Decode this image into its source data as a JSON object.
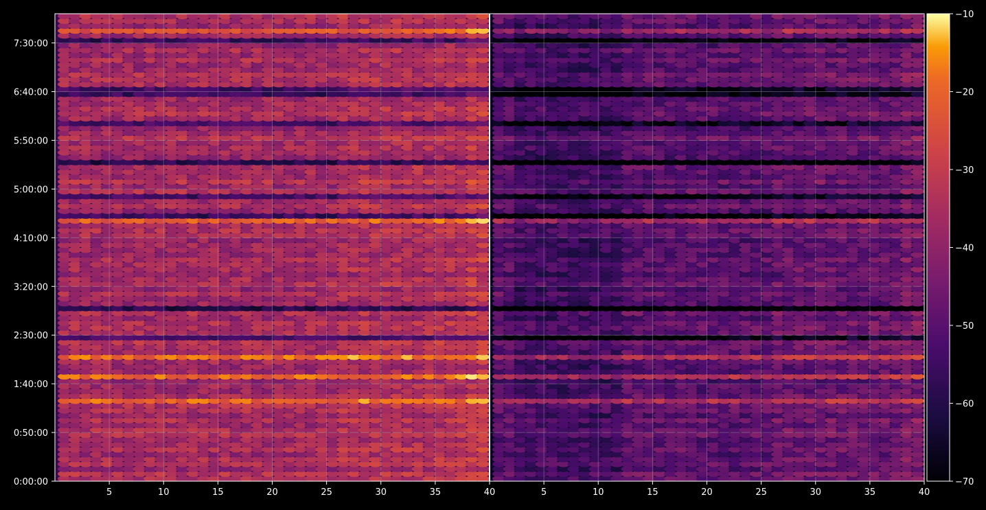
{
  "chart_data": {
    "type": "heatmap",
    "title": "",
    "xlabel": "",
    "ylabel": "",
    "panels": [
      {
        "name": "",
        "x_range": [
          1,
          40
        ],
        "xticks": [
          5,
          10,
          15,
          20,
          25,
          30,
          35,
          40
        ],
        "shading": "bright"
      },
      {
        "name": "",
        "x_range": [
          1,
          40
        ],
        "xticks": [
          5,
          10,
          15,
          20,
          25,
          30,
          35,
          40
        ],
        "shading": "dark"
      }
    ],
    "yticks": [
      "0:00:00",
      "0:50:00",
      "1:40:00",
      "2:30:00",
      "3:20:00",
      "4:10:00",
      "5:00:00",
      "5:50:00",
      "6:40:00",
      "7:30:00"
    ],
    "y_range_seconds": [
      0,
      28800
    ],
    "colorbar": {
      "colormap": "inferno",
      "range": [
        -70,
        -10
      ],
      "ticks": [
        -10,
        -20,
        -30,
        -40,
        -50,
        -60,
        -70
      ],
      "tick_labels": [
        "−10",
        "−20",
        "−30",
        "−40",
        "−50",
        "−60",
        "−70"
      ]
    },
    "grid": true,
    "legend": "none",
    "colors": {
      "background": "#000000",
      "text": "#ffffff",
      "grid": "#bbbbbb"
    }
  }
}
